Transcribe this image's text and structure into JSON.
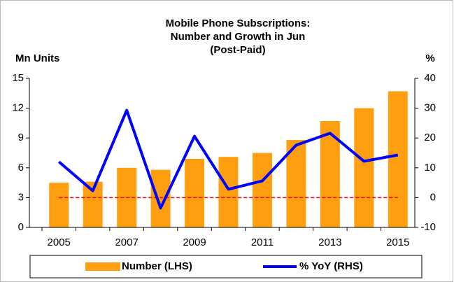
{
  "chart_data": {
    "type": "bar_line",
    "title": [
      "Mobile Phone Subscriptions:",
      "Number and Growth in Jun",
      "(Post-Paid)"
    ],
    "y_label": "Mn Units",
    "y2_label": "%",
    "categories": [
      "2005",
      null,
      "2007",
      null,
      "2009",
      null,
      "2011",
      null,
      "2013",
      null,
      "2015"
    ],
    "series": [
      {
        "name": "Number (LHS)",
        "type": "bar",
        "color": "#ff9f0f",
        "values": [
          4.5,
          4.6,
          6.0,
          5.8,
          6.9,
          7.1,
          7.5,
          8.8,
          10.7,
          12.0,
          13.7
        ]
      },
      {
        "name": "% YoY (RHS)",
        "type": "line",
        "axis": "y2",
        "color": "#0000ff",
        "values": [
          12.0,
          2.3,
          29.3,
          -3.5,
          20.6,
          2.8,
          5.6,
          17.6,
          21.6,
          12.2,
          14.3
        ]
      }
    ],
    "ylim": [
      0,
      15
    ],
    "yticks": [
      0,
      3,
      6,
      9,
      12,
      15
    ],
    "y2lim": [
      -10,
      40
    ],
    "y2ticks": [
      -10,
      0,
      10,
      20,
      30,
      40
    ],
    "reference_line": {
      "value": 0,
      "axis": "y2",
      "color": "#ff0000"
    },
    "legend": "bottom"
  }
}
